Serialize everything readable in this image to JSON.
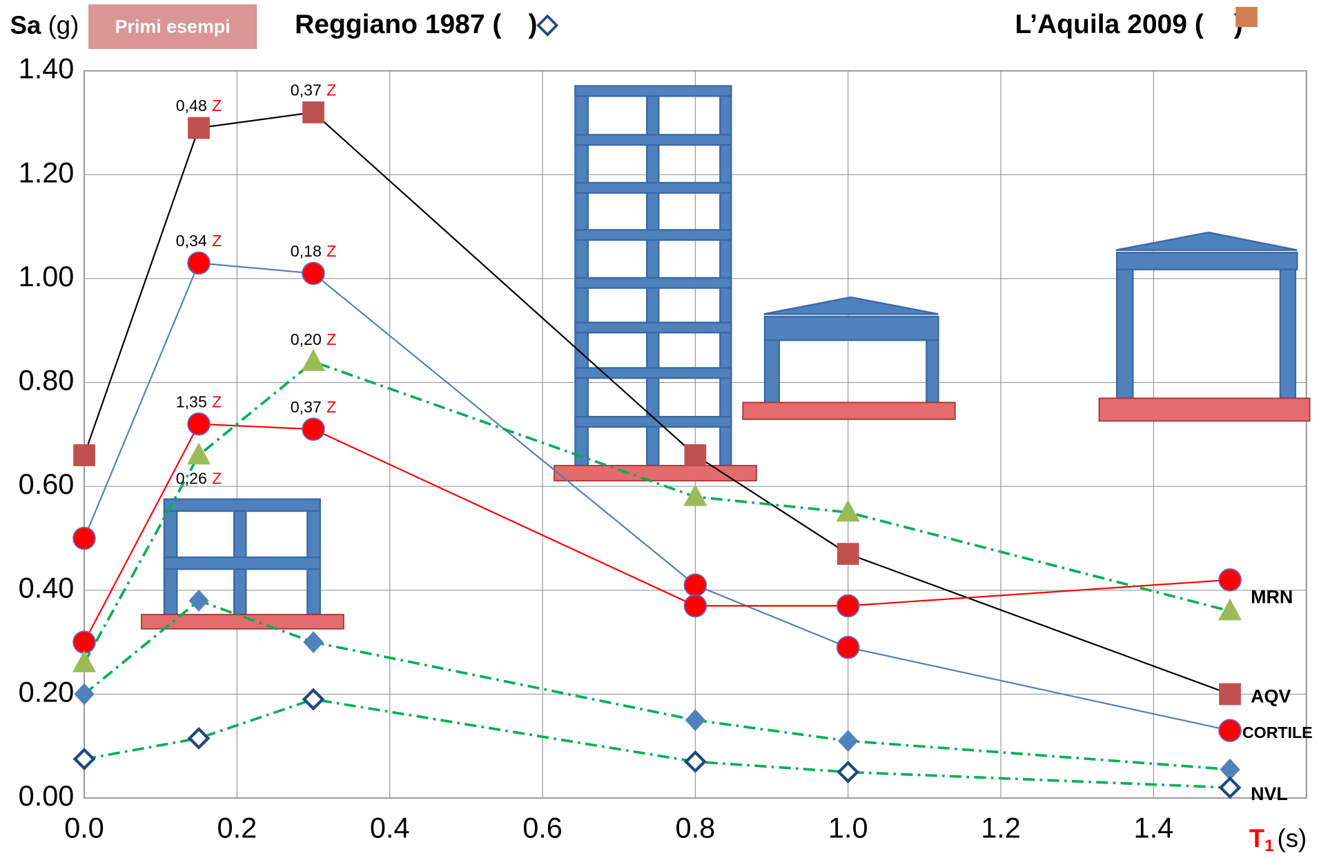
{
  "chart_data": {
    "type": "line",
    "y_label": {
      "symbol": "Sa",
      "unit": "(g)"
    },
    "button": "Primi esempi",
    "legend": [
      {
        "prefix": "Reggiano 1987 (",
        "suffix": ")"
      },
      {
        "prefix": "L’Aquila 2009 (",
        "suffix": ")"
      }
    ],
    "x_label": {
      "symbol": "T",
      "subscript": "1",
      "unit": "(s)"
    },
    "x": [
      0,
      0.15,
      0.3,
      0.8,
      1.0,
      1.5
    ],
    "xlim": [
      0,
      1.6
    ],
    "xticks": [
      {
        "value": 0,
        "label": "0.0"
      },
      0.2,
      0.4,
      0.6,
      0.8,
      {
        "value": 1,
        "label": "1.0"
      },
      1.2,
      1.4
    ],
    "ylim": [
      0,
      1.4
    ],
    "yticks": [
      {
        "value": 0,
        "label": "0.00"
      },
      {
        "value": 0.2,
        "label": "0.20"
      },
      {
        "value": 0.4,
        "label": "0.40"
      },
      {
        "value": 0.6,
        "label": "0.60"
      },
      {
        "value": 0.8,
        "label": "0.80"
      },
      {
        "value": 1,
        "label": "1.00"
      },
      {
        "value": 1.2,
        "label": "1.20"
      },
      {
        "value": 1.4,
        "label": "1.40"
      }
    ],
    "grid": true,
    "series": [
      {
        "name": "AQV",
        "color": "#000000",
        "marker": "square",
        "marker_color": "#c0504d",
        "dash": "solid",
        "values": [
          0.66,
          1.29,
          1.32,
          0.66,
          0.47,
          0.2
        ]
      },
      {
        "name": "CORTILE",
        "color": "#4f81bd",
        "marker": "circle",
        "marker_color": "#ff0000",
        "dash": "solid",
        "values": [
          0.5,
          1.03,
          1.01,
          0.41,
          0.29,
          0.13
        ]
      },
      {
        "name": "MRN",
        "color": "#ff0000",
        "marker": "circle",
        "marker_color": "#ff0000",
        "dash": "solid",
        "values": [
          0.3,
          0.72,
          0.71,
          0.37,
          0.37,
          0.42
        ]
      },
      {
        "color": "#00b050",
        "marker": "triangle",
        "marker_color": "#9bbb59",
        "dash": "dashdot",
        "values": [
          0.26,
          0.66,
          0.84,
          0.58,
          0.55,
          0.36
        ]
      },
      {
        "color": "#00b050",
        "marker": "diamond",
        "marker_color": "#4f81bd",
        "dash": "dashdot",
        "values": [
          0.2,
          0.38,
          0.3,
          0.15,
          0.11,
          0.055
        ]
      },
      {
        "name": "NVL",
        "color": "#00b050",
        "marker": "diamond-open",
        "marker_color": "#1f497d",
        "dash": "dashdot",
        "values": [
          0.075,
          0.115,
          0.19,
          0.07,
          0.05,
          0.02
        ]
      }
    ],
    "annotations": [
      {
        "number": "0,48",
        "mark": "Z",
        "series": 0,
        "point": 1
      },
      {
        "number": "0,37",
        "mark": "Z",
        "series": 0,
        "point": 2
      },
      {
        "number": "0,34",
        "mark": "Z",
        "series": 1,
        "point": 1
      },
      {
        "number": "0,18",
        "mark": "Z",
        "series": 1,
        "point": 2
      },
      {
        "number": "1,35",
        "mark": "Z",
        "series": 2,
        "point": 1
      },
      {
        "number": "0,37",
        "mark": "Z",
        "series": 2,
        "point": 2
      },
      {
        "number": "0,26",
        "mark": "Z",
        "series": 3,
        "point": 1
      },
      {
        "number": "0,20",
        "mark": "Z",
        "series": 3,
        "point": 2
      }
    ]
  }
}
